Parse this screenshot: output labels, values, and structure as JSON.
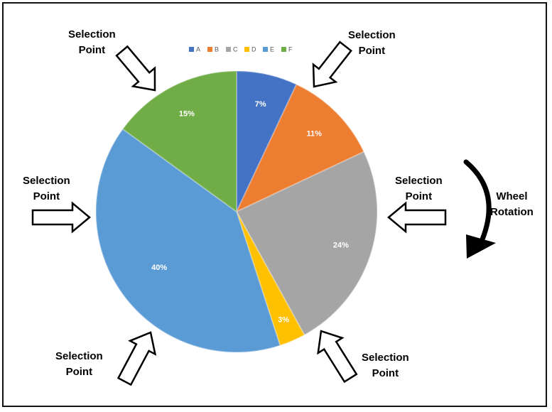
{
  "chart_data": {
    "type": "pie",
    "title": "",
    "categories": [
      "A",
      "B",
      "C",
      "D",
      "E",
      "F"
    ],
    "values": [
      7,
      11,
      24,
      3,
      40,
      15
    ],
    "value_labels": [
      "7%",
      "11%",
      "24%",
      "3%",
      "40%",
      "15%"
    ],
    "colors": [
      "#4472c4",
      "#ed7d31",
      "#a5a5a5",
      "#ffc000",
      "#5b9bd5",
      "#70ad47"
    ],
    "start_angle_deg": 0,
    "direction": "clockwise",
    "legend": {
      "position": "top-center",
      "entries": [
        "A",
        "B",
        "C",
        "D",
        "E",
        "F"
      ]
    }
  },
  "annotations": {
    "selection_line1": "Selection",
    "selection_line2": "Point",
    "wheel_line1": "Wheel",
    "wheel_line2": "Rotation"
  }
}
